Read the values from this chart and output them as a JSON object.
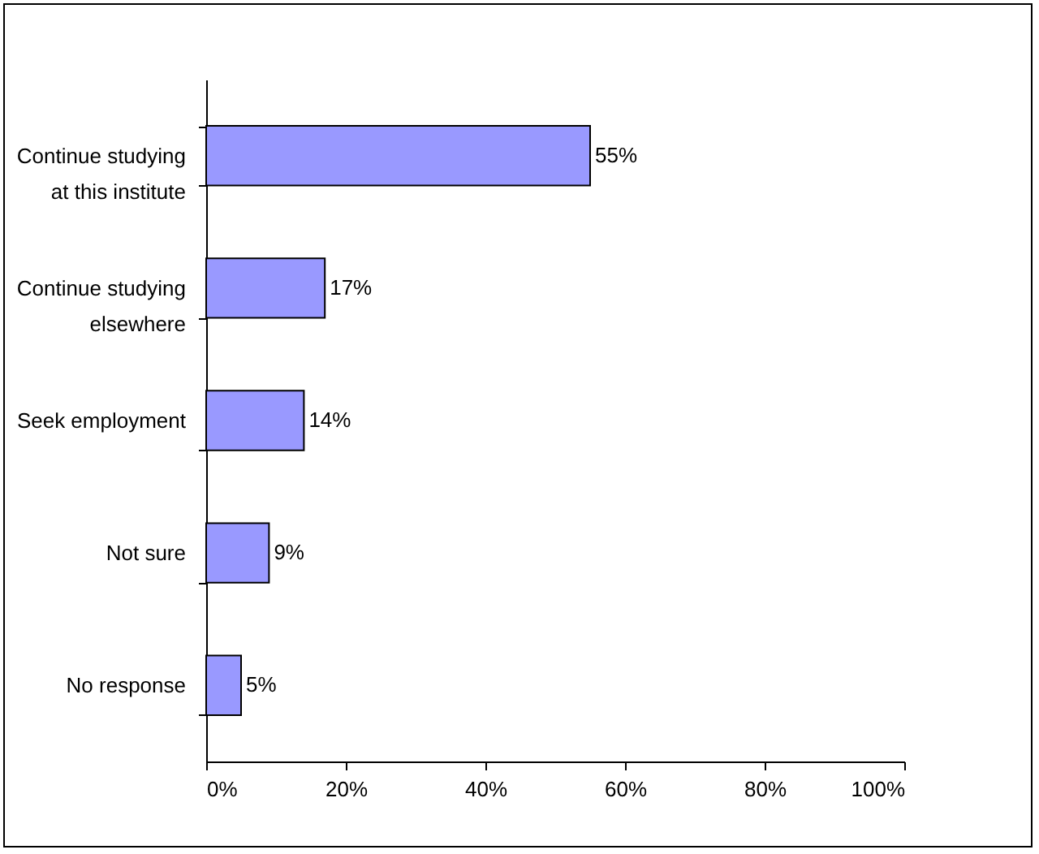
{
  "chart_data": {
    "type": "bar",
    "orientation": "horizontal",
    "categories": [
      "Continue studying at this institute",
      "Continue studying elsewhere",
      "Seek employment",
      "Not sure",
      "No response"
    ],
    "values": [
      55,
      17,
      14,
      9,
      5
    ],
    "value_labels": [
      "55%",
      "17%",
      "14%",
      "9%",
      "5%"
    ],
    "color": "#9999ff",
    "xlim": [
      0,
      100
    ],
    "xticks": [
      {
        "value": 0,
        "label": "0%"
      },
      {
        "value": 20,
        "label": "20%"
      },
      {
        "value": 40,
        "label": "40%"
      },
      {
        "value": 60,
        "label": "60%"
      },
      {
        "value": 80,
        "label": "80%"
      },
      {
        "value": 100,
        "label": "100%"
      }
    ],
    "grid": false
  }
}
